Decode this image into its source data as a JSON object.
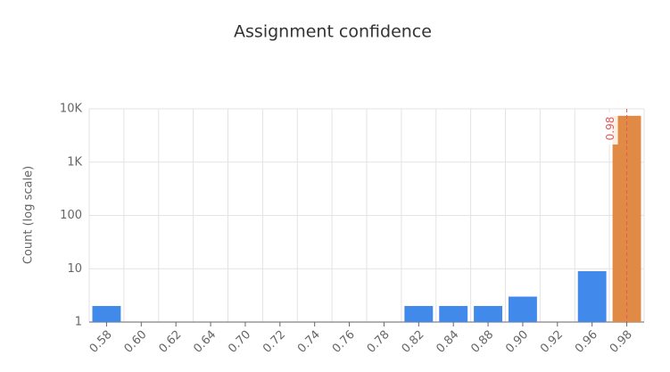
{
  "chart_data": {
    "type": "bar",
    "title": "Assignment confidence",
    "y_label": "Count (log scale)",
    "categories": [
      "0.58",
      "0.60",
      "0.62",
      "0.64",
      "0.70",
      "0.72",
      "0.74",
      "0.76",
      "0.78",
      "0.82",
      "0.84",
      "0.88",
      "0.90",
      "0.92",
      "0.96",
      "0.98"
    ],
    "values": [
      2,
      1,
      1,
      1,
      1,
      1,
      1,
      1,
      1,
      2,
      2,
      2,
      3,
      1,
      9,
      7400
    ],
    "colors": [
      "#4289ec",
      "#4289ec",
      "#4289ec",
      "#4289ec",
      "#4289ec",
      "#4289ec",
      "#4289ec",
      "#4289ec",
      "#4289ec",
      "#4289ec",
      "#4289ec",
      "#4289ec",
      "#4289ec",
      "#4289ec",
      "#4289ec",
      "#e08a45"
    ],
    "log_scale": true,
    "ylim": [
      1,
      10000
    ],
    "yticks": [
      1,
      10,
      100,
      {
        "value": 1000,
        "label": "1K"
      },
      {
        "value": 10000,
        "label": "10K"
      }
    ],
    "grid": true,
    "markline": {
      "at": "0.98",
      "color": "#e05a5a"
    }
  }
}
